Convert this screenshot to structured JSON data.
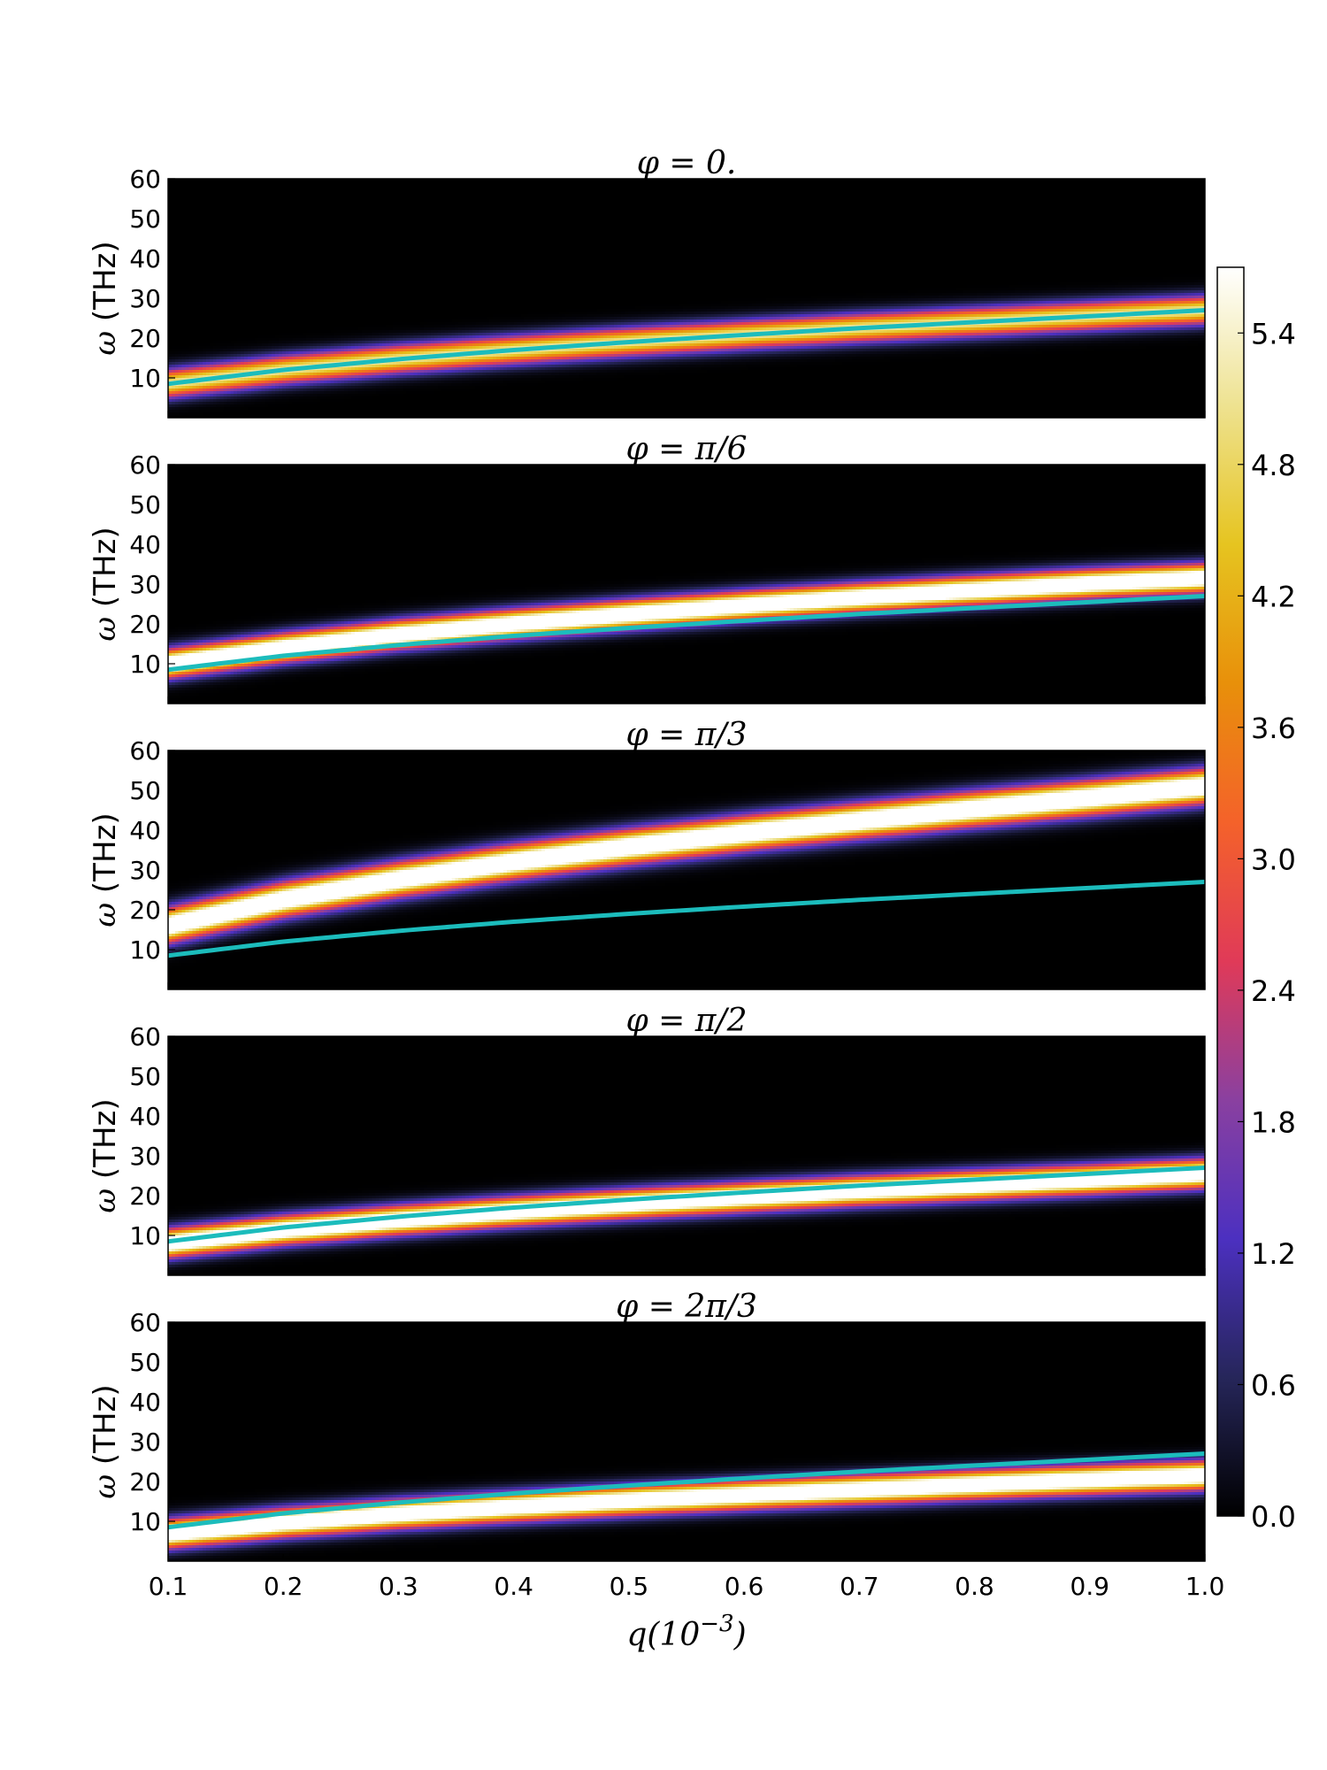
{
  "chart_data": {
    "type": "heatmap",
    "figure_layout": "5 vertically stacked panels sharing x axis, one shared colorbar on the right",
    "xlabel": "q(10^-3)",
    "xlabel_parts": {
      "base": "q(10",
      "sup": "−3",
      "close": ")"
    },
    "x_ticks": [
      "0.1",
      "0.2",
      "0.3",
      "0.4",
      "0.5",
      "0.6",
      "0.7",
      "0.8",
      "0.9",
      "1.0"
    ],
    "xlim": [
      0.1,
      1.0
    ],
    "ylabel_symbol": "ω",
    "ylabel_unit": "(THz)",
    "y_ticks": [
      "10",
      "20",
      "30",
      "40",
      "50",
      "60"
    ],
    "ylim": [
      0,
      60
    ],
    "colormap": "CMRmap (black-blue-purple-red-orange-yellow-white)",
    "colorbar": {
      "ticks": [
        "0.0",
        "0.6",
        "1.2",
        "1.8",
        "2.4",
        "3.0",
        "3.6",
        "4.2",
        "4.8",
        "5.4"
      ],
      "range": [
        0.0,
        5.7
      ],
      "stops": [
        "#000000",
        "#26265a",
        "#4c30c0",
        "#8a40a0",
        "#e03a58",
        "#f4622a",
        "#e8900a",
        "#e6c420",
        "#eee290",
        "#ffffff"
      ]
    },
    "curve_color": "#1cbcbc",
    "reference_curve": {
      "description": "cyan curve, identical in all panels",
      "x": [
        0.1,
        0.2,
        0.3,
        0.4,
        0.5,
        0.6,
        0.7,
        0.8,
        0.9,
        1.0
      ],
      "y": [
        8.5,
        12.0,
        14.7,
        17.0,
        19.0,
        20.8,
        22.5,
        24.0,
        25.5,
        27.0
      ]
    },
    "panels": [
      {
        "title": "φ = 0.",
        "band_center": {
          "x": [
            0.1,
            0.2,
            0.3,
            0.4,
            0.5,
            0.6,
            0.7,
            0.8,
            0.9,
            1.0
          ],
          "y": [
            8.5,
            12.0,
            14.7,
            17.0,
            19.0,
            20.8,
            22.5,
            24.0,
            25.5,
            27.0
          ]
        },
        "band_halfwidth": 2.5,
        "peak_intensity": 4.2
      },
      {
        "title": "φ = π/6",
        "band_center": {
          "x": [
            0.1,
            0.2,
            0.3,
            0.4,
            0.5,
            0.6,
            0.7,
            0.8,
            0.9,
            1.0
          ],
          "y": [
            10.0,
            14.0,
            17.3,
            20.0,
            22.4,
            24.6,
            26.6,
            28.4,
            30.1,
            31.5
          ]
        },
        "band_halfwidth": 2.5,
        "peak_intensity": 5.7
      },
      {
        "title": "φ = π/3",
        "band_center": {
          "x": [
            0.1,
            0.2,
            0.3,
            0.4,
            0.5,
            0.6,
            0.7,
            0.8,
            0.9,
            1.0
          ],
          "y": [
            16.0,
            22.5,
            27.6,
            32.0,
            35.8,
            39.2,
            42.3,
            45.3,
            48.1,
            51.0
          ]
        },
        "band_halfwidth": 3.0,
        "peak_intensity": 5.7
      },
      {
        "title": "φ = π/2",
        "band_center": {
          "x": [
            0.1,
            0.2,
            0.3,
            0.4,
            0.5,
            0.6,
            0.7,
            0.8,
            0.9,
            1.0
          ],
          "y": [
            8.0,
            11.3,
            13.8,
            16.0,
            17.9,
            19.6,
            21.2,
            22.6,
            24.0,
            25.5
          ]
        },
        "band_halfwidth": 2.5,
        "peak_intensity": 5.7
      },
      {
        "title": "φ = 2π/3",
        "band_center": {
          "x": [
            0.1,
            0.2,
            0.3,
            0.4,
            0.5,
            0.6,
            0.7,
            0.8,
            0.9,
            1.0
          ],
          "y": [
            6.8,
            9.6,
            11.8,
            13.6,
            15.2,
            16.6,
            17.9,
            19.2,
            20.4,
            21.5
          ]
        },
        "band_halfwidth": 2.5,
        "peak_intensity": 5.7
      }
    ]
  }
}
